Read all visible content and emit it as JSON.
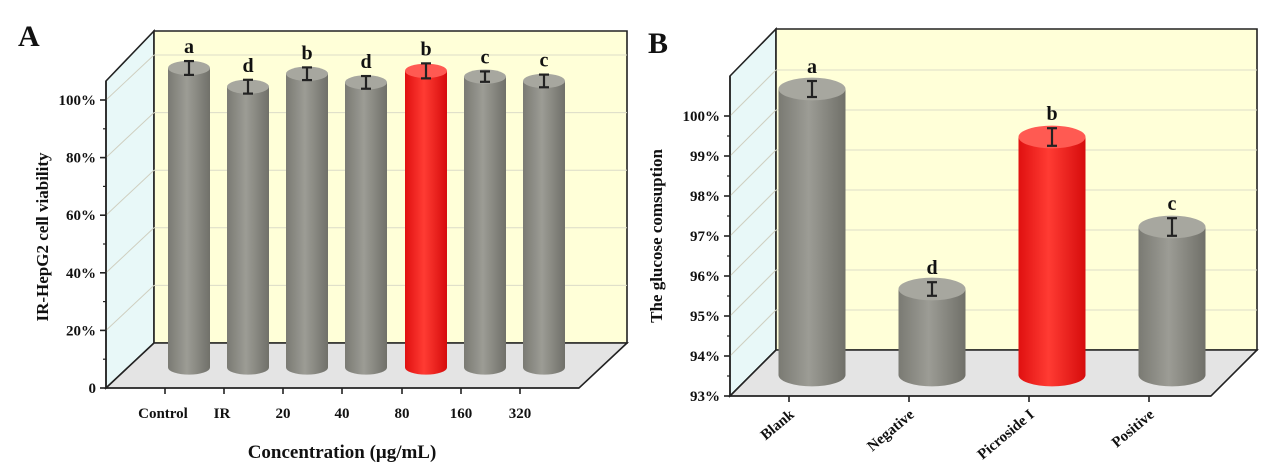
{
  "colors": {
    "bar": "#8d8d86",
    "bar_dark": "#72726b",
    "bar_light": "#a7a79f",
    "highlight": "#ff1f1f",
    "highlight_dark": "#d40f0f",
    "highlight_light": "#ff5a52",
    "back_wall": "#ffffd8",
    "side_wall": "#e8f8f8",
    "floor": "#e4e4e4"
  },
  "chart_data": [
    {
      "panel_label": "A",
      "type": "bar",
      "xlabel": "Concentration (μg/mL)",
      "ylabel": "IR-HepG2 cell viability",
      "categories": [
        "Control",
        "IR",
        "20",
        "40",
        "80",
        "160",
        "320"
      ],
      "ylim": [
        0,
        110
      ],
      "yticks": [
        0,
        20,
        40,
        60,
        80,
        100
      ],
      "ytick_labels": [
        "0",
        "20%",
        "40%",
        "60%",
        "80%",
        "100%"
      ],
      "series": [
        {
          "name": "viability",
          "values": [
            104.0,
            97.5,
            102.0,
            99.0,
            103.0,
            101.0,
            99.5
          ]
        }
      ],
      "errors": [
        2.4,
        2.4,
        2.2,
        2.2,
        2.6,
        1.8,
        2.2
      ],
      "significance": [
        "a",
        "d",
        "b",
        "d",
        "b",
        "c",
        "c"
      ],
      "highlight_index": 4
    },
    {
      "panel_label": "B",
      "type": "bar",
      "xlabel": "",
      "ylabel": "The glucose comsuption",
      "categories": [
        "Blank",
        "Negative",
        "Picroside I",
        "Positive"
      ],
      "ylim": [
        93,
        101
      ],
      "yticks": [
        93,
        94,
        95,
        96,
        97,
        98,
        99,
        100
      ],
      "ytick_labels": [
        "93%",
        "94%",
        "95%",
        "96%",
        "97%",
        "98%",
        "99%",
        "100%"
      ],
      "series": [
        {
          "name": "glucose consumption",
          "values": [
            100.15,
            95.15,
            98.95,
            96.7
          ]
        }
      ],
      "errors": [
        0.2,
        0.17,
        0.22,
        0.22
      ],
      "significance": [
        "a",
        "d",
        "b",
        "c"
      ],
      "highlight_index": 2
    }
  ]
}
